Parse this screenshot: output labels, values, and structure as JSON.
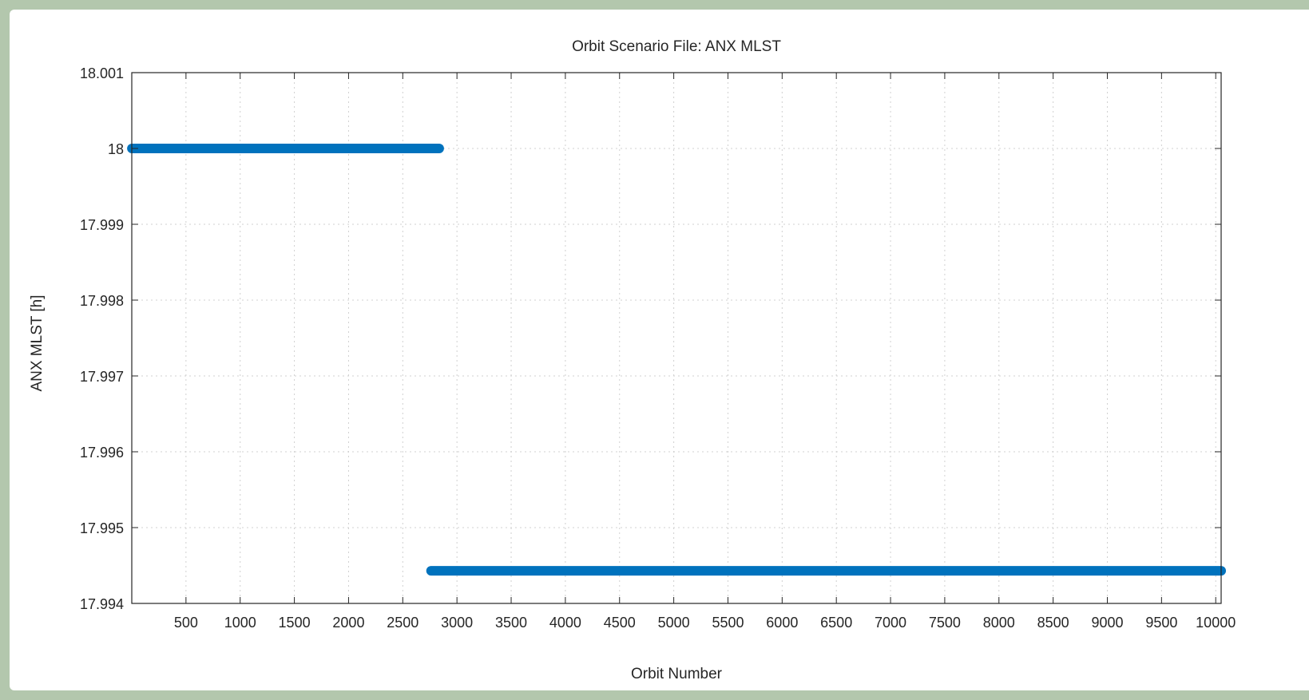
{
  "chart_data": {
    "type": "scatter",
    "title": "Orbit Scenario File: ANX MLST",
    "xlabel": "Orbit Number",
    "ylabel": "ANX MLST [h]",
    "xlim": [
      0,
      10050
    ],
    "ylim": [
      17.994,
      18.001
    ],
    "xticks": [
      500,
      1000,
      1500,
      2000,
      2500,
      3000,
      3500,
      4000,
      4500,
      5000,
      5500,
      6000,
      6500,
      7000,
      7500,
      8000,
      8500,
      9000,
      9500,
      10000
    ],
    "yticks": [
      "17.994",
      "17.995",
      "17.996",
      "17.997",
      "17.998",
      "17.999",
      "18",
      "18.001"
    ],
    "grid": true,
    "series": [
      {
        "x_start": 1,
        "x_end": 2836,
        "y": 18.0
      },
      {
        "x_start": 2761,
        "x_end": 10050,
        "y": 17.99443
      }
    ],
    "color": "#0072bd"
  }
}
